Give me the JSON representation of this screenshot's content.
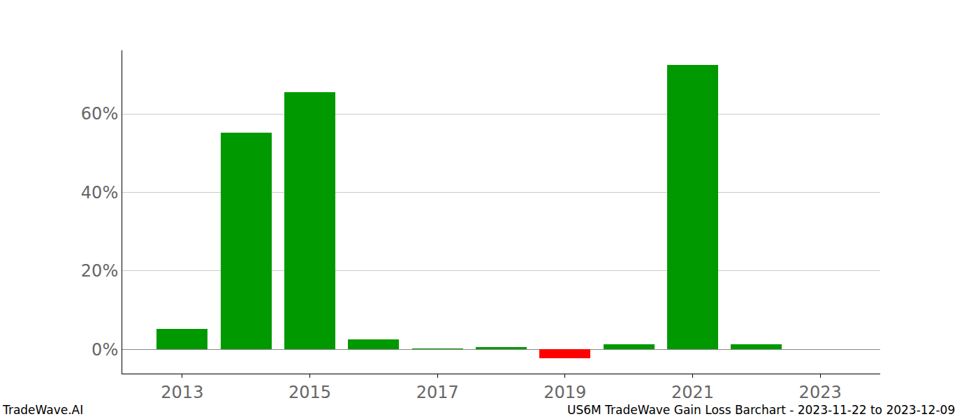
{
  "chart_data": {
    "type": "bar",
    "title": "US6M TradeWave Gain Loss Barchart - 2023-11-22 to 2023-12-09",
    "annotations": [
      "TradeWave.AI"
    ],
    "x": [
      2013,
      2014,
      2015,
      2016,
      2017,
      2018,
      2019,
      2020,
      2021,
      2022,
      2023
    ],
    "values": [
      5.2,
      55.2,
      65.5,
      2.5,
      0.2,
      0.5,
      -2.3,
      1.2,
      72.5,
      1.2,
      0
    ],
    "colors": [
      "#009900",
      "#009900",
      "#009900",
      "#009900",
      "#009900",
      "#009900",
      "#ff0000",
      "#009900",
      "#009900",
      "#009900",
      "#009900"
    ],
    "xlim": [
      2012.06,
      2023.94
    ],
    "xticks": [
      2013,
      2015,
      2017,
      2019,
      2021,
      2023
    ],
    "ylim": [
      -6.2,
      76.2
    ],
    "yticks": [
      {
        "value": 0,
        "label": "0%"
      },
      {
        "value": 20,
        "label": "20%"
      },
      {
        "value": 40,
        "label": "40%"
      },
      {
        "value": 60,
        "label": "60%"
      }
    ],
    "grid": true
  }
}
